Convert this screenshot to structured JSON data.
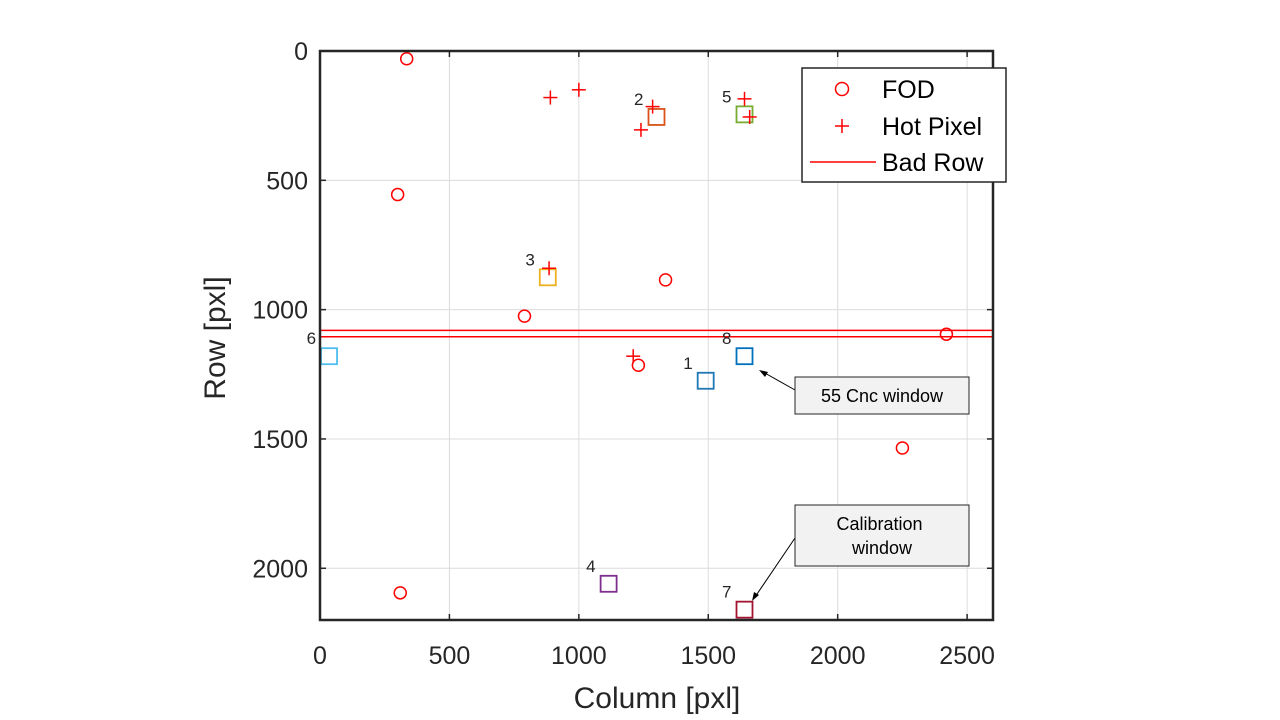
{
  "chart_data": {
    "type": "scatter",
    "xlabel": "Column [pxl]",
    "ylabel": "Row [pxl]",
    "xlim": [
      0,
      2600
    ],
    "ylim": [
      0,
      2200
    ],
    "y_reversed": true,
    "grid": true,
    "x_ticks": [
      "0",
      "500",
      "1000",
      "1500",
      "2000",
      "2500"
    ],
    "y_ticks": [
      "0",
      "500",
      "1000",
      "1500",
      "2000"
    ],
    "x_tick_values": [
      0,
      500,
      1000,
      1500,
      2000,
      2500
    ],
    "y_tick_values": [
      0,
      500,
      1000,
      1500,
      2000
    ],
    "legend": {
      "position": "top-right",
      "entries": [
        {
          "label": "FOD",
          "marker": "circle",
          "color": "#ff0000"
        },
        {
          "label": "Hot Pixel",
          "marker": "plus",
          "color": "#ff0000"
        },
        {
          "label": "Bad Row",
          "marker": "line",
          "color": "#ff0000"
        }
      ]
    },
    "series": [
      {
        "name": "FOD",
        "marker": "circle",
        "color": "#ff0000",
        "points": [
          {
            "x": 335,
            "y": 30
          },
          {
            "x": 300,
            "y": 555
          },
          {
            "x": 790,
            "y": 1025
          },
          {
            "x": 1335,
            "y": 885
          },
          {
            "x": 1230,
            "y": 1215
          },
          {
            "x": 2420,
            "y": 1095
          },
          {
            "x": 2250,
            "y": 1535
          },
          {
            "x": 310,
            "y": 2095
          }
        ]
      },
      {
        "name": "Hot Pixel",
        "marker": "plus",
        "color": "#ff0000",
        "points": [
          {
            "x": 890,
            "y": 180
          },
          {
            "x": 1000,
            "y": 150
          },
          {
            "x": 1285,
            "y": 215
          },
          {
            "x": 1240,
            "y": 305
          },
          {
            "x": 1640,
            "y": 185
          },
          {
            "x": 1660,
            "y": 255
          },
          {
            "x": 885,
            "y": 840
          },
          {
            "x": 1210,
            "y": 1180
          }
        ]
      },
      {
        "name": "Bad Row",
        "marker": "line",
        "color": "#ff0000",
        "rows": [
          1080,
          1105
        ]
      }
    ],
    "windows": [
      {
        "label": "1",
        "x": 1490,
        "y": 1275,
        "color": "#1f77b4"
      },
      {
        "label": "2",
        "x": 1300,
        "y": 255,
        "color": "#d95319"
      },
      {
        "label": "3",
        "x": 880,
        "y": 875,
        "color": "#edb120"
      },
      {
        "label": "4",
        "x": 1115,
        "y": 2060,
        "color": "#7e2f8e"
      },
      {
        "label": "5",
        "x": 1640,
        "y": 245,
        "color": "#77ac30"
      },
      {
        "label": "6",
        "x": 35,
        "y": 1180,
        "color": "#4dbeee"
      },
      {
        "label": "7",
        "x": 1640,
        "y": 2160,
        "color": "#a2142f"
      },
      {
        "label": "8",
        "x": 1640,
        "y": 1180,
        "color": "#0072bd"
      }
    ],
    "annotations": [
      {
        "text": "55 Cnc window",
        "target_window": "8"
      },
      {
        "text": "Calibration window",
        "target_window": "7"
      }
    ]
  }
}
